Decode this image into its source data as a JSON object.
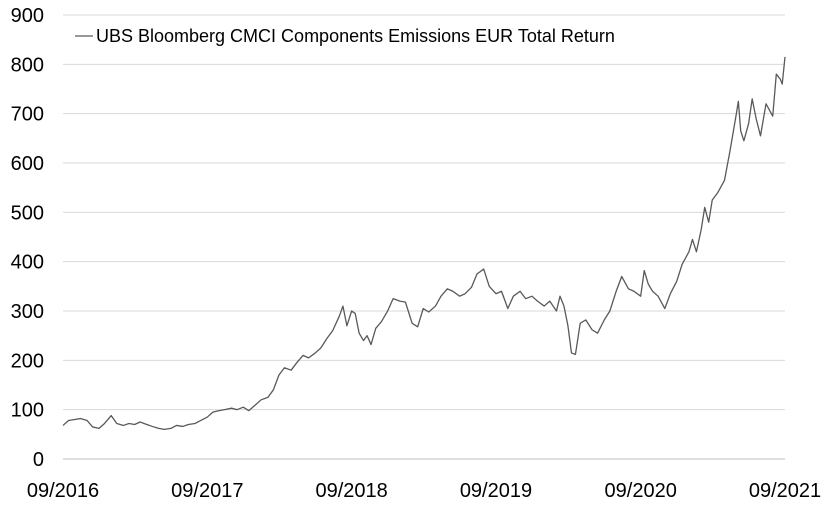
{
  "chart_data": {
    "type": "line",
    "title": "",
    "xlabel": "",
    "ylabel": "",
    "ylim": [
      0,
      900
    ],
    "yticks": [
      0,
      100,
      200,
      300,
      400,
      500,
      600,
      700,
      800,
      900
    ],
    "xlim": [
      "2016-09",
      "2021-09"
    ],
    "xticks": [
      "09/2016",
      "09/2017",
      "09/2018",
      "09/2019",
      "09/2020",
      "09/2021"
    ],
    "grid": "horizontal",
    "legend": "top-left",
    "colors": {
      "line": "#595959",
      "grid": "#d9d9d9",
      "axis": "#bfbfbf"
    },
    "series": [
      {
        "name": "UBS Bloomberg CMCI Components Emissions EUR Total Return",
        "points": [
          [
            "2016-09-01",
            68
          ],
          [
            "2016-09-15",
            78
          ],
          [
            "2016-10-01",
            80
          ],
          [
            "2016-10-15",
            82
          ],
          [
            "2016-11-01",
            78
          ],
          [
            "2016-11-15",
            65
          ],
          [
            "2016-12-01",
            62
          ],
          [
            "2016-12-15",
            72
          ],
          [
            "2017-01-01",
            88
          ],
          [
            "2017-01-15",
            72
          ],
          [
            "2017-02-01",
            68
          ],
          [
            "2017-02-15",
            72
          ],
          [
            "2017-03-01",
            70
          ],
          [
            "2017-03-15",
            75
          ],
          [
            "2017-04-01",
            70
          ],
          [
            "2017-04-15",
            66
          ],
          [
            "2017-05-01",
            62
          ],
          [
            "2017-05-15",
            60
          ],
          [
            "2017-06-01",
            62
          ],
          [
            "2017-06-15",
            68
          ],
          [
            "2017-07-01",
            66
          ],
          [
            "2017-07-15",
            70
          ],
          [
            "2017-08-01",
            72
          ],
          [
            "2017-08-15",
            78
          ],
          [
            "2017-09-01",
            85
          ],
          [
            "2017-09-15",
            95
          ],
          [
            "2017-10-01",
            98
          ],
          [
            "2017-10-15",
            100
          ],
          [
            "2017-11-01",
            103
          ],
          [
            "2017-11-15",
            100
          ],
          [
            "2017-12-01",
            105
          ],
          [
            "2017-12-15",
            98
          ],
          [
            "2018-01-01",
            110
          ],
          [
            "2018-01-15",
            120
          ],
          [
            "2018-02-01",
            125
          ],
          [
            "2018-02-15",
            140
          ],
          [
            "2018-03-01",
            170
          ],
          [
            "2018-03-15",
            185
          ],
          [
            "2018-04-01",
            180
          ],
          [
            "2018-04-15",
            195
          ],
          [
            "2018-05-01",
            210
          ],
          [
            "2018-05-15",
            205
          ],
          [
            "2018-06-01",
            215
          ],
          [
            "2018-06-15",
            225
          ],
          [
            "2018-07-01",
            245
          ],
          [
            "2018-07-15",
            260
          ],
          [
            "2018-08-01",
            290
          ],
          [
            "2018-08-10",
            310
          ],
          [
            "2018-08-20",
            270
          ],
          [
            "2018-09-01",
            300
          ],
          [
            "2018-09-10",
            295
          ],
          [
            "2018-09-20",
            255
          ],
          [
            "2018-10-01",
            240
          ],
          [
            "2018-10-10",
            250
          ],
          [
            "2018-10-20",
            232
          ],
          [
            "2018-11-01",
            265
          ],
          [
            "2018-11-15",
            278
          ],
          [
            "2018-12-01",
            300
          ],
          [
            "2018-12-15",
            325
          ],
          [
            "2019-01-01",
            320
          ],
          [
            "2019-01-15",
            318
          ],
          [
            "2019-02-01",
            275
          ],
          [
            "2019-02-15",
            268
          ],
          [
            "2019-03-01",
            305
          ],
          [
            "2019-03-15",
            298
          ],
          [
            "2019-04-01",
            310
          ],
          [
            "2019-04-15",
            330
          ],
          [
            "2019-05-01",
            345
          ],
          [
            "2019-05-15",
            340
          ],
          [
            "2019-06-01",
            330
          ],
          [
            "2019-06-15",
            335
          ],
          [
            "2019-07-01",
            348
          ],
          [
            "2019-07-15",
            375
          ],
          [
            "2019-08-01",
            385
          ],
          [
            "2019-08-15",
            350
          ],
          [
            "2019-09-01",
            335
          ],
          [
            "2019-09-15",
            340
          ],
          [
            "2019-10-01",
            305
          ],
          [
            "2019-10-15",
            330
          ],
          [
            "2019-11-01",
            340
          ],
          [
            "2019-11-15",
            325
          ],
          [
            "2019-12-01",
            330
          ],
          [
            "2019-12-15",
            320
          ],
          [
            "2020-01-01",
            310
          ],
          [
            "2020-01-15",
            320
          ],
          [
            "2020-02-01",
            300
          ],
          [
            "2020-02-10",
            330
          ],
          [
            "2020-02-20",
            310
          ],
          [
            "2020-03-01",
            270
          ],
          [
            "2020-03-10",
            215
          ],
          [
            "2020-03-20",
            212
          ],
          [
            "2020-04-01",
            275
          ],
          [
            "2020-04-15",
            282
          ],
          [
            "2020-05-01",
            262
          ],
          [
            "2020-05-15",
            255
          ],
          [
            "2020-06-01",
            282
          ],
          [
            "2020-06-15",
            300
          ],
          [
            "2020-07-01",
            340
          ],
          [
            "2020-07-15",
            370
          ],
          [
            "2020-08-01",
            345
          ],
          [
            "2020-08-15",
            340
          ],
          [
            "2020-09-01",
            330
          ],
          [
            "2020-09-10",
            382
          ],
          [
            "2020-09-20",
            355
          ],
          [
            "2020-10-01",
            340
          ],
          [
            "2020-10-15",
            330
          ],
          [
            "2020-11-01",
            305
          ],
          [
            "2020-11-15",
            335
          ],
          [
            "2020-12-01",
            360
          ],
          [
            "2020-12-15",
            395
          ],
          [
            "2021-01-01",
            420
          ],
          [
            "2021-01-10",
            445
          ],
          [
            "2021-01-20",
            420
          ],
          [
            "2021-02-01",
            465
          ],
          [
            "2021-02-10",
            510
          ],
          [
            "2021-02-20",
            480
          ],
          [
            "2021-03-01",
            525
          ],
          [
            "2021-03-15",
            540
          ],
          [
            "2021-04-01",
            565
          ],
          [
            "2021-04-15",
            625
          ],
          [
            "2021-05-01",
            700
          ],
          [
            "2021-05-06",
            725
          ],
          [
            "2021-05-12",
            665
          ],
          [
            "2021-05-20",
            645
          ],
          [
            "2021-06-01",
            680
          ],
          [
            "2021-06-10",
            730
          ],
          [
            "2021-06-20",
            690
          ],
          [
            "2021-07-01",
            655
          ],
          [
            "2021-07-15",
            720
          ],
          [
            "2021-08-01",
            695
          ],
          [
            "2021-08-10",
            780
          ],
          [
            "2021-08-20",
            770
          ],
          [
            "2021-08-25",
            760
          ],
          [
            "2021-09-01",
            815
          ]
        ]
      }
    ]
  }
}
